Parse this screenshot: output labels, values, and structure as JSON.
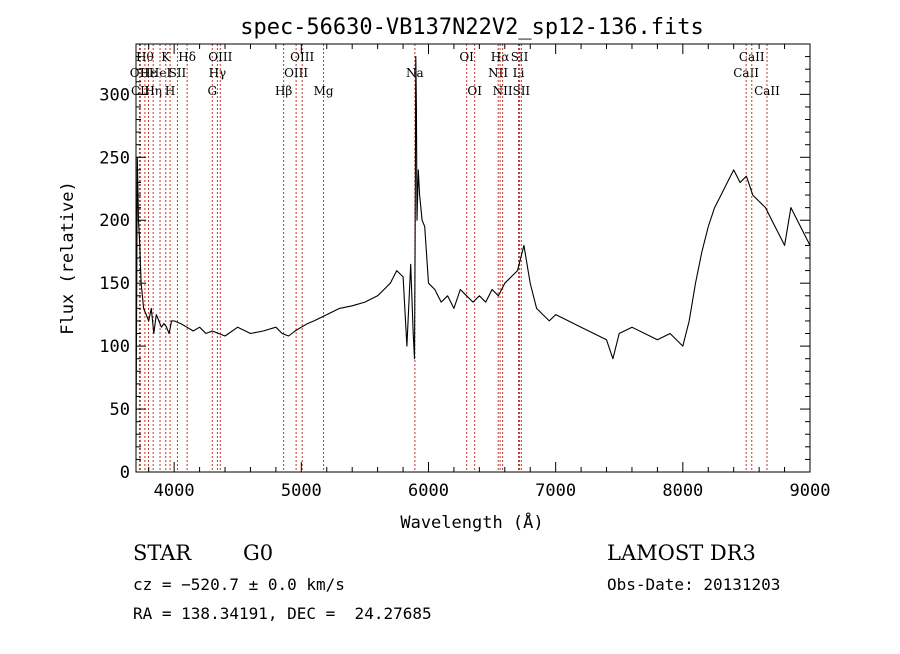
{
  "chart_data": {
    "type": "line",
    "title": "spec-56630-VB137N22V2_sp12-136.fits",
    "xlabel": "Wavelength (Å)",
    "ylabel": "Flux (relative)",
    "xlim": [
      3700,
      9000
    ],
    "ylim": [
      0,
      340
    ],
    "x_ticks": [
      4000,
      5000,
      6000,
      7000,
      8000,
      9000
    ],
    "y_ticks": [
      0,
      50,
      100,
      150,
      200,
      250,
      300
    ],
    "grid": false,
    "line_color": "#000000",
    "marker_color": "#c0392b",
    "series": [
      {
        "x": [
          3700,
          3710,
          3720,
          3730,
          3740,
          3750,
          3760,
          3780,
          3800,
          3820,
          3840,
          3860,
          3880,
          3900,
          3920,
          3940,
          3960,
          3980,
          4000,
          4050,
          4100,
          4150,
          4200,
          4250,
          4300,
          4350,
          4400,
          4500,
          4600,
          4700,
          4800,
          4850,
          4900,
          4950,
          5000,
          5050,
          5100,
          5200,
          5300,
          5400,
          5500,
          5600,
          5650,
          5700,
          5750,
          5800,
          5830,
          5860,
          5880,
          5890,
          5895,
          5900,
          5905,
          5910,
          5920,
          5930,
          5950,
          5970,
          6000,
          6050,
          6100,
          6150,
          6200,
          6250,
          6300,
          6350,
          6400,
          6450,
          6500,
          6550,
          6600,
          6650,
          6700,
          6750,
          6800,
          6850,
          6900,
          6950,
          7000,
          7100,
          7200,
          7300,
          7400,
          7450,
          7500,
          7600,
          7700,
          7800,
          7900,
          8000,
          8050,
          8100,
          8150,
          8200,
          8250,
          8300,
          8350,
          8400,
          8450,
          8500,
          8550,
          8600,
          8650,
          8700,
          8750,
          8800,
          8850,
          8900,
          8950,
          9000
        ],
        "y": [
          20,
          250,
          200,
          180,
          150,
          140,
          130,
          125,
          120,
          130,
          110,
          125,
          120,
          115,
          118,
          115,
          110,
          120,
          120,
          118,
          115,
          112,
          115,
          110,
          112,
          110,
          108,
          115,
          110,
          112,
          115,
          110,
          108,
          112,
          115,
          118,
          120,
          125,
          130,
          132,
          135,
          140,
          145,
          150,
          160,
          155,
          100,
          165,
          110,
          90,
          180,
          330,
          290,
          200,
          240,
          220,
          200,
          195,
          150,
          145,
          135,
          140,
          130,
          145,
          140,
          135,
          140,
          135,
          145,
          140,
          150,
          155,
          160,
          180,
          150,
          130,
          125,
          120,
          125,
          120,
          115,
          110,
          105,
          90,
          110,
          115,
          110,
          105,
          110,
          100,
          120,
          150,
          175,
          195,
          210,
          220,
          230,
          240,
          230,
          235,
          220,
          215,
          210,
          200,
          190,
          180,
          210,
          200,
          190,
          180
        ]
      }
    ],
    "line_markers": [
      {
        "x": 3727,
        "label": "OII",
        "row": 2
      },
      {
        "x": 3734,
        "label": "CII",
        "row": 3
      },
      {
        "x": 3770,
        "label": "Hθ",
        "row": 1
      },
      {
        "x": 3798,
        "label": "Hε",
        "row": 2
      },
      {
        "x": 3835,
        "label": "Hη",
        "row": 3
      },
      {
        "x": 3889,
        "label": "HeI",
        "row": 2
      },
      {
        "x": 3934,
        "label": "K",
        "row": 1
      },
      {
        "x": 3968,
        "label": "H",
        "row": 3
      },
      {
        "x": 4026,
        "label": "SII",
        "row": 2
      },
      {
        "x": 4102,
        "label": "Hδ",
        "row": 1
      },
      {
        "x": 4300,
        "label": "G",
        "row": 3
      },
      {
        "x": 4340,
        "label": "Hγ",
        "row": 2
      },
      {
        "x": 4363,
        "label": "OIII",
        "row": 1
      },
      {
        "x": 4861,
        "label": "Hβ",
        "row": 3
      },
      {
        "x": 4959,
        "label": "OIII",
        "row": 2
      },
      {
        "x": 5007,
        "label": "OIII",
        "row": 1
      },
      {
        "x": 5175,
        "label": "Mg",
        "row": 3
      },
      {
        "x": 5893,
        "label": "Na",
        "row": 2
      },
      {
        "x": 6300,
        "label": "OI",
        "row": 1
      },
      {
        "x": 6363,
        "label": "OI",
        "row": 3
      },
      {
        "x": 6548,
        "label": "NII",
        "row": 2
      },
      {
        "x": 6563,
        "label": "Hα",
        "row": 1
      },
      {
        "x": 6583,
        "label": "NII",
        "row": 3
      },
      {
        "x": 6708,
        "label": "Li",
        "row": 2
      },
      {
        "x": 6716,
        "label": "SII",
        "row": 1
      },
      {
        "x": 6730,
        "label": "SII",
        "row": 3
      },
      {
        "x": 8498,
        "label": "CaII",
        "row": 2
      },
      {
        "x": 8542,
        "label": "CaII",
        "row": 1
      },
      {
        "x": 8662,
        "label": "CaII",
        "row": 3
      }
    ]
  },
  "info": {
    "class": "STAR",
    "subclass": "G0",
    "survey": "LAMOST DR3",
    "cz": "cz = −520.7 ± 0.0 km/s",
    "obs_date": "Obs-Date: 20131203",
    "coords": "RA = 138.34191, DEC =  24.27685"
  }
}
